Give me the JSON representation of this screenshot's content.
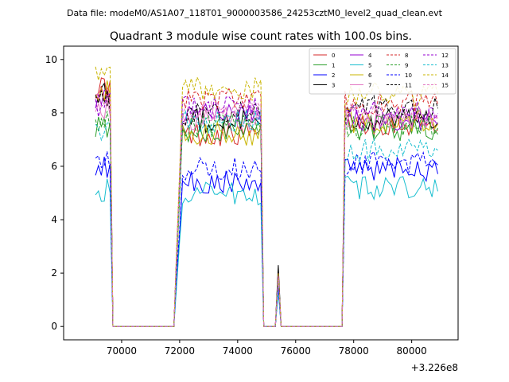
{
  "chart_data": {
    "type": "line",
    "suptitle": "Data file: modeM0/AS1A07_118T01_9000003586_24253cztM0_level2_quad_clean.evt",
    "title": "Quadrant 3 module wise count rates with 100.0s bins.",
    "xlabel": "",
    "ylabel": "",
    "x_offset_label": "+3.226e8",
    "xlim": [
      68000,
      81600
    ],
    "ylim": [
      -0.5,
      10.5
    ],
    "x_ticks": [
      70000,
      72000,
      74000,
      76000,
      78000,
      80000
    ],
    "x_tick_labels": [
      "70000",
      "72000",
      "74000",
      "76000",
      "78000",
      "80000"
    ],
    "y_ticks": [
      0,
      2,
      4,
      6,
      8,
      10
    ],
    "y_tick_labels": [
      "0",
      "2",
      "4",
      "6",
      "8",
      "10"
    ],
    "legend_position": "top-right",
    "legend_columns": 4,
    "segments": [
      {
        "start": 69100,
        "end": 69600
      },
      {
        "start": 71800,
        "end": 74800
      },
      {
        "start": 75400,
        "end": 75400
      },
      {
        "start": 77700,
        "end": 80900
      }
    ],
    "series": [
      {
        "name": "0",
        "color": "#d62728",
        "dash": false,
        "levels": [
          9.0,
          7.2,
          1.9,
          7.6
        ]
      },
      {
        "name": "1",
        "color": "#2ca02c",
        "dash": false,
        "levels": [
          7.5,
          7.3,
          1.8,
          7.4
        ]
      },
      {
        "name": "2",
        "color": "#0000ff",
        "dash": false,
        "levels": [
          6.0,
          5.4,
          1.5,
          5.9
        ]
      },
      {
        "name": "3",
        "color": "#000000",
        "dash": false,
        "levels": [
          8.7,
          7.7,
          2.3,
          7.8
        ]
      },
      {
        "name": "4",
        "color": "#9400d3",
        "dash": false,
        "levels": [
          8.4,
          7.9,
          1.9,
          7.7
        ]
      },
      {
        "name": "5",
        "color": "#17becf",
        "dash": false,
        "levels": [
          5.1,
          5.0,
          1.3,
          5.2
        ]
      },
      {
        "name": "6",
        "color": "#c8b400",
        "dash": false,
        "levels": [
          8.8,
          7.2,
          1.9,
          7.7
        ]
      },
      {
        "name": "7",
        "color": "#e377c2",
        "dash": false,
        "levels": [
          8.1,
          7.8,
          1.9,
          7.9
        ]
      },
      {
        "name": "8",
        "color": "#d62728",
        "dash": true,
        "levels": [
          8.6,
          8.5,
          2.0,
          8.4
        ]
      },
      {
        "name": "9",
        "color": "#2ca02c",
        "dash": true,
        "levels": [
          7.7,
          7.5,
          1.8,
          7.5
        ]
      },
      {
        "name": "10",
        "color": "#0000ff",
        "dash": true,
        "levels": [
          6.2,
          5.9,
          1.5,
          6.1
        ]
      },
      {
        "name": "11",
        "color": "#000000",
        "dash": true,
        "levels": [
          8.5,
          8.0,
          2.1,
          8.2
        ]
      },
      {
        "name": "12",
        "color": "#9400d3",
        "dash": true,
        "levels": [
          8.3,
          8.2,
          1.9,
          8.0
        ]
      },
      {
        "name": "13",
        "color": "#17becf",
        "dash": true,
        "levels": [
          7.3,
          7.7,
          1.8,
          6.6
        ]
      },
      {
        "name": "14",
        "color": "#c8b400",
        "dash": true,
        "levels": [
          9.4,
          8.9,
          2.0,
          8.7
        ]
      },
      {
        "name": "15",
        "color": "#e377c2",
        "dash": true,
        "levels": [
          8.3,
          8.0,
          1.9,
          7.9
        ]
      }
    ]
  }
}
